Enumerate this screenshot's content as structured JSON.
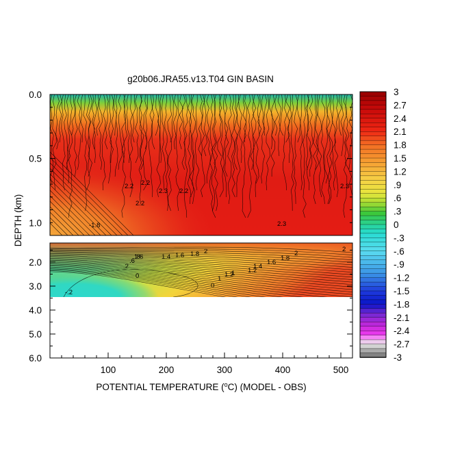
{
  "chart_data": {
    "type": "heatmap",
    "title": "g20b06.JRA55.v13.T04 GIN BASIN",
    "xlabel": "POTENTIAL TEMPERATURE (°C) (MODEL - OBS)",
    "xlabel_prefix": "POTENTIAL TEMPERATURE (",
    "xlabel_degree": "o",
    "xlabel_suffix": "C) (MODEL - OBS)",
    "ylabel": "DEPTH (km)",
    "xlim": [
      0,
      520
    ],
    "x_ticks": [
      "100",
      "200",
      "300",
      "400",
      "500"
    ],
    "upper_panel": {
      "ylim": [
        0.0,
        1.1
      ],
      "y_ticks": [
        "0.0",
        "0.5",
        "1.0"
      ]
    },
    "lower_panel": {
      "ylim": [
        1.2,
        6.0
      ],
      "y_ticks": [
        "2.0",
        "3.0",
        "4.0",
        "5.0",
        "6.0"
      ],
      "data_bottom_km": 3.4
    },
    "colorbar": {
      "min": -3,
      "max": 3,
      "step": 0.1,
      "tick_labels": [
        "3",
        "2.7",
        "2.4",
        "2.1",
        "1.8",
        "1.5",
        "1.2",
        ".9",
        ".6",
        ".3",
        "0",
        "-.3",
        "-.6",
        "-.9",
        "-1.2",
        "-1.5",
        "-1.8",
        "-2.1",
        "-2.4",
        "-2.7",
        "-3"
      ]
    },
    "contour_labels_upper": [
      "-1.8",
      "2.2",
      "2.2",
      "2.2",
      "2.3",
      "2.2",
      "2.3",
      "2.3"
    ],
    "contour_labels_lower": [
      "1.6",
      "1.4",
      "1.6",
      "1.8",
      "2",
      "1",
      "1.2",
      "1.4",
      "1.6",
      "1.8",
      "2",
      "0",
      ".2",
      ".6",
      ".8",
      "-.2",
      "0",
      "1",
      "1.2",
      "2"
    ],
    "field_summary": {
      "upper": "surface layer near 0 to 1 (cyan/green/yellow) warming to about 2.1-2.4 (red) below 0.3 km; orange (about 1.5-1.8) at depth near x < 60",
      "lower": "about 2 (orange/red) near 1.4 km; decreasing with depth and toward small x to about -0.3 to 0 (cyan) below 2.2 km for x < 280"
    }
  }
}
